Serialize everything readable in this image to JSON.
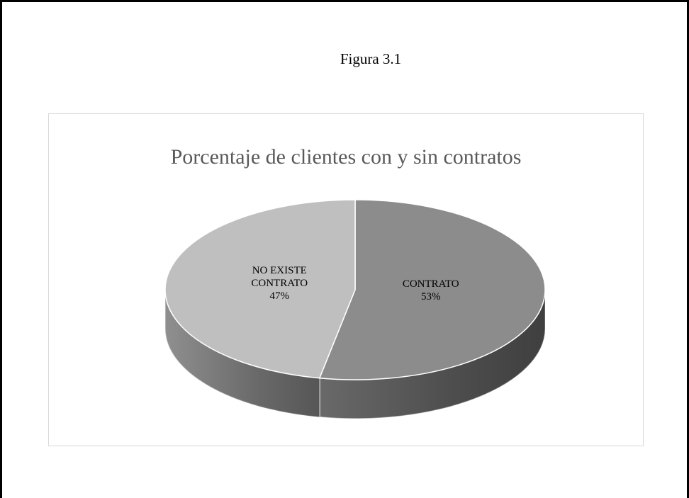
{
  "caption": "Figura 3.1",
  "chart_data": {
    "type": "pie",
    "title": "Porcentaje de clientes con y sin contratos",
    "categories": [
      "CONTRATO",
      "NO EXISTE CONTRATO"
    ],
    "values": [
      53,
      47
    ],
    "value_labels": [
      "53%",
      "47%"
    ],
    "colors": [
      "#8c8c8c",
      "#bfbfbf"
    ]
  }
}
